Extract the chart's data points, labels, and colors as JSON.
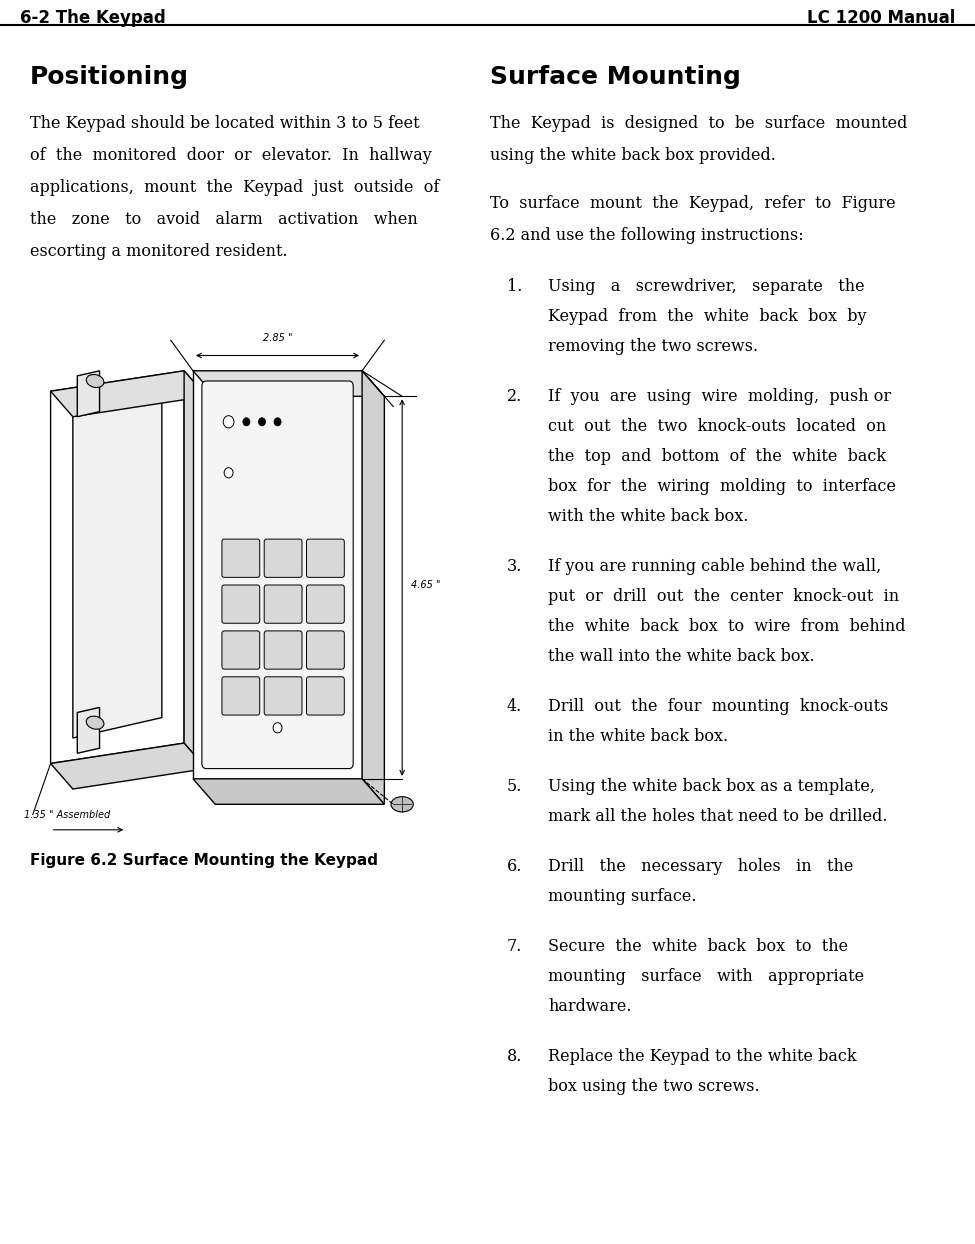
{
  "header_left": "6-2 The Keypad",
  "header_right": "LC 1200 Manual",
  "bg_color": "#ffffff",
  "text_color": "#000000",
  "positioning_title": "Positioning",
  "positioning_body": "The Keypad should be located within 3 to 5 feet of the monitored door or elevator. In hallway applications, mount the Keypad just outside of the zone to avoid alarm activation when escorting a monitored resident.",
  "surface_title": "Surface Mounting",
  "surface_body1": "The Keypad is designed to be surface mounted using the white back box provided.",
  "surface_body2": "To surface mount the Keypad, refer to Figure 6.2 and use the following instructions:",
  "figure_caption": "Figure 6.2 Surface Mounting the Keypad",
  "list_items": [
    "Using a screwdriver, separate the Keypad from the white back box by removing the two screws.",
    "If you are using wire molding, push or cut out the two knock-outs located on the top and bottom of the white back box for the wiring molding to interface with the white back box.",
    "If you are running cable behind the wall, put or drill out the center knock-out in the white back box to wire from behind the wall into the white back box.",
    "Drill out the four mounting knock-outs in the white back box.",
    "Using the white back box as a template, mark all the holes that need to be drilled.",
    "Drill the necessary holes in the mounting surface.",
    "Secure the white back box to the mounting surface with appropriate hardware.",
    "Replace the Keypad to the white back box using the two screws."
  ]
}
